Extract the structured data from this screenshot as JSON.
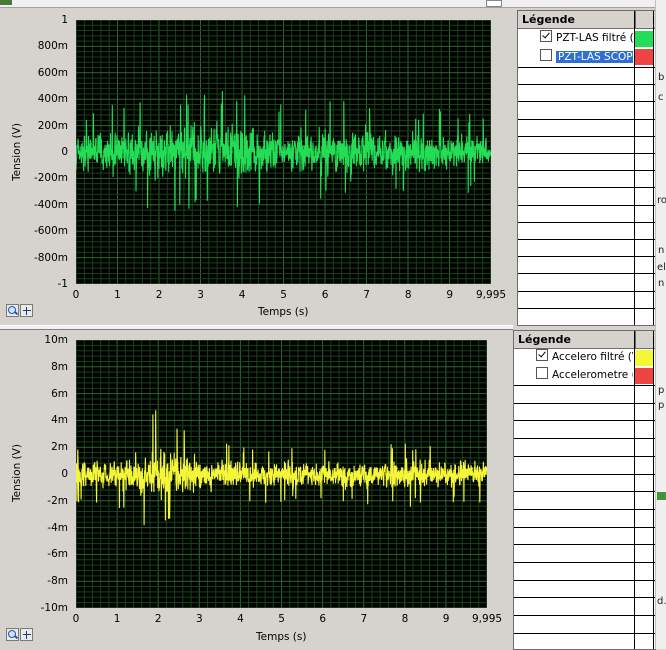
{
  "graphs": [
    {
      "y_ticks": [
        "1",
        "800m",
        "600m",
        "400m",
        "200m",
        "0",
        "-200m",
        "-400m",
        "-600m",
        "-800m",
        "-1"
      ],
      "x_ticks": [
        "0",
        "1",
        "2",
        "3",
        "4",
        "5",
        "6",
        "7",
        "8",
        "9",
        "9,995"
      ],
      "x_title": "Temps  (s)",
      "y_title": "Tension  (V)",
      "legend": {
        "title": "Légende",
        "entries": [
          {
            "label": "PZT-LAS filtré (V",
            "checked": true,
            "selected": false,
            "color": "#22dd55"
          },
          {
            "label": "PZT-LAS SCOPE",
            "checked": false,
            "selected": true,
            "color": "#ee4444"
          }
        ]
      }
    },
    {
      "y_ticks": [
        "10m",
        "8m",
        "6m",
        "4m",
        "2m",
        "0",
        "-2m",
        "-4m",
        "-6m",
        "-8m",
        "-10m"
      ],
      "x_ticks": [
        "0",
        "1",
        "2",
        "3",
        "4",
        "5",
        "6",
        "7",
        "8",
        "9",
        "9,995"
      ],
      "x_title": "Temps  (s)",
      "y_title": "Tension  (V)",
      "legend": {
        "title": "Légende",
        "entries": [
          {
            "label": "Accelero filtré (V",
            "checked": true,
            "selected": false,
            "color": "#f5f53a"
          },
          {
            "label": "Accelerometre (V",
            "checked": false,
            "selected": false,
            "color": "#ee4444"
          }
        ]
      }
    }
  ],
  "chart_data": [
    {
      "type": "line",
      "xlabel": "Temps  (s)",
      "ylabel": "Tension  (V)",
      "xlim": [
        0,
        9.995
      ],
      "ylim": [
        -1,
        1
      ],
      "grid": true,
      "series": [
        {
          "name": "PZT-LAS filtré (V",
          "color": "#22dd55",
          "noise_envelope_abs_max": [
            0.3,
            0.38,
            0.45,
            0.47,
            0.52,
            0.38,
            0.4,
            0.42,
            0.35,
            0.32,
            0.3
          ]
        }
      ]
    },
    {
      "type": "line",
      "xlabel": "Temps  (s)",
      "ylabel": "Tension  (V)",
      "xlim": [
        0,
        9.995
      ],
      "ylim": [
        -0.01,
        0.01
      ],
      "grid": true,
      "series": [
        {
          "name": "Accelero filtré (V",
          "color": "#f5f53a",
          "noise_envelope_abs_max": [
            0.0022,
            0.0025,
            0.005,
            0.003,
            0.0022,
            0.0022,
            0.0022,
            0.0025,
            0.0025,
            0.0022,
            0.0022
          ]
        }
      ]
    }
  ],
  "side_fragments": [
    "b",
    "c",
    "ro",
    "n",
    "el",
    "n",
    "p",
    "p",
    "d."
  ]
}
